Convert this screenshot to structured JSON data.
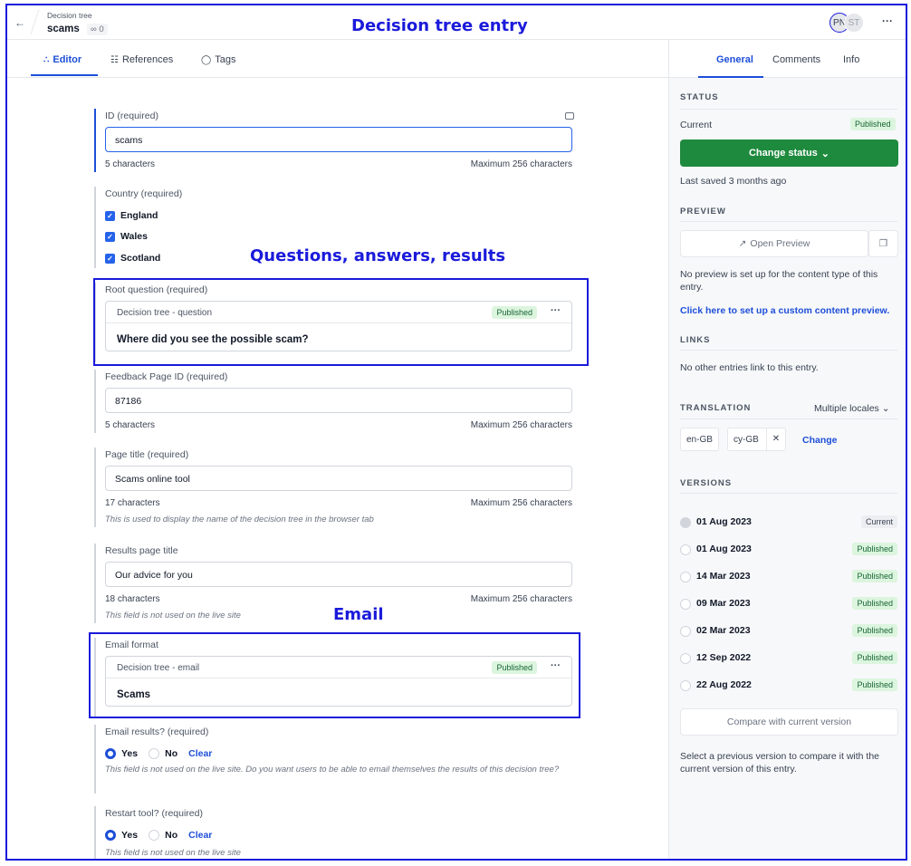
{
  "header": {
    "breadcrumb_parent": "Decision tree",
    "entry_title": "scams",
    "ref_count": "0",
    "annotation_title": "Decision tree entry",
    "avatars": [
      "PN",
      "ST"
    ]
  },
  "annotations": {
    "questions": "Questions, answers, results",
    "email": "Email"
  },
  "tabs": [
    {
      "label": "Editor",
      "icon": "editor-icon"
    },
    {
      "label": "References",
      "icon": "references-icon"
    },
    {
      "label": "Tags",
      "icon": "tag-icon"
    }
  ],
  "fields": {
    "id": {
      "label": "ID (required)",
      "value": "scams",
      "count": "5 characters",
      "max": "Maximum 256 characters"
    },
    "country": {
      "label": "Country (required)",
      "options": [
        "England",
        "Wales",
        "Scotland"
      ]
    },
    "root_question": {
      "label": "Root question (required)",
      "card_type": "Decision tree - question",
      "status": "Published",
      "title": "Where did you see the possible scam?"
    },
    "feedback": {
      "label": "Feedback Page ID (required)",
      "value": "87186",
      "count": "5 characters",
      "max": "Maximum 256 characters"
    },
    "page_title": {
      "label": "Page title (required)",
      "value": "Scams online tool",
      "count": "17 characters",
      "max": "Maximum 256 characters",
      "hint": "This is used to display the name of the decision tree in the browser tab"
    },
    "results_title": {
      "label": "Results page title",
      "value": "Our advice for you",
      "count": "18 characters",
      "max": "Maximum 256 characters",
      "hint": "This field is not used on the live site"
    },
    "email_format": {
      "label": "Email format",
      "card_type": "Decision tree - email",
      "status": "Published",
      "title": "Scams"
    },
    "email_results": {
      "label": "Email results? (required)",
      "yes": "Yes",
      "no": "No",
      "clear": "Clear",
      "hint": "This field is not used on the live site. Do you want users to be able to email themselves the results of this decision tree?"
    },
    "restart": {
      "label": "Restart tool? (required)",
      "yes": "Yes",
      "no": "No",
      "clear": "Clear",
      "hint": "This field is not used on the live site"
    }
  },
  "sidebar": {
    "tabs": [
      "General",
      "Comments",
      "Info"
    ],
    "status_heading": "STATUS",
    "current_label": "Current",
    "current_status": "Published",
    "change_status": "Change status",
    "last_saved": "Last saved 3 months ago",
    "preview_heading": "PREVIEW",
    "open_preview": "Open Preview",
    "preview_note": "No preview is set up for the content type of this entry.",
    "preview_link": "Click here to set up a custom content preview.",
    "links_heading": "LINKS",
    "links_note": "No other entries link to this entry.",
    "translation_heading": "TRANSLATION",
    "locales_select": "Multiple locales",
    "locales": [
      "en-GB",
      "cy-GB"
    ],
    "change": "Change",
    "versions_heading": "VERSIONS",
    "versions": [
      {
        "date": "01 Aug 2023",
        "status": "Current"
      },
      {
        "date": "01 Aug 2023",
        "status": "Published"
      },
      {
        "date": "14 Mar 2023",
        "status": "Published"
      },
      {
        "date": "09 Mar 2023",
        "status": "Published"
      },
      {
        "date": "02 Mar 2023",
        "status": "Published"
      },
      {
        "date": "12 Sep 2022",
        "status": "Published"
      },
      {
        "date": "22 Aug 2022",
        "status": "Published"
      }
    ],
    "compare": "Compare with current version",
    "compare_note": "Select a previous version to compare it with the current version of this entry."
  }
}
